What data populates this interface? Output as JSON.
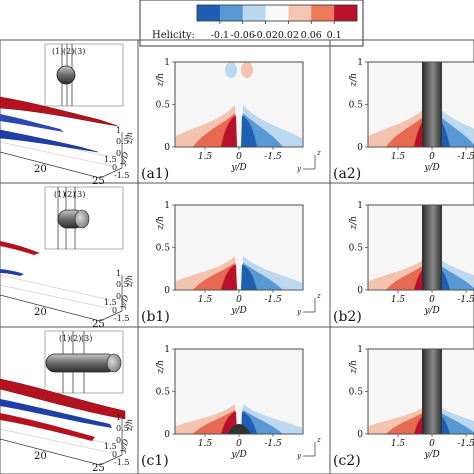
{
  "colorbar": {
    "title": "Helicity:",
    "ticks": [
      "-0.1",
      "-0.06",
      "-0.02",
      "0.02",
      "0.06",
      "0.1"
    ],
    "colors": [
      "#1f5fb3",
      "#5a98d4",
      "#b9d7ee",
      "#f8f8f8",
      "#f5c6b4",
      "#ec7b5c",
      "#b8122a"
    ]
  },
  "rows": [
    {
      "panel_1": "(a1)",
      "panel_2": "(a2)",
      "inset_labels": [
        "(1)",
        "(2)",
        "(3)"
      ],
      "iso_ticks_x": [
        "20",
        "25"
      ],
      "iso_ticks_y": [
        "1.5",
        "0",
        "-1.5"
      ],
      "iso_ticks_z": [
        "1",
        "0.5",
        "0"
      ],
      "iso_xlabel": "y/D",
      "iso_zlabel": "z/h"
    },
    {
      "panel_1": "(b1)",
      "panel_2": "(b2)",
      "inset_labels": [
        "(1)",
        "(2)",
        "(3)"
      ],
      "iso_ticks_x": [
        "20",
        "25"
      ],
      "iso_ticks_y": [
        "1.5",
        "0",
        "-1.5"
      ],
      "iso_ticks_z": [
        "1",
        "0.5",
        "0"
      ],
      "iso_xlabel": "y/D",
      "iso_zlabel": "z/h"
    },
    {
      "panel_1": "(c1)",
      "panel_2": "(c2)",
      "inset_labels": [
        "(1)",
        "(2)",
        "(3)"
      ],
      "iso_ticks_x": [
        "20",
        "25"
      ],
      "iso_ticks_y": [
        "1.5",
        "0",
        "-1.5"
      ],
      "iso_ticks_z": [
        "1",
        "0.5",
        "0"
      ],
      "iso_xlabel": "y/D",
      "iso_zlabel": "z/h"
    }
  ],
  "contour": {
    "y_ticks": [
      "1",
      "0.5",
      "0"
    ],
    "x_ticks": [
      "1.5",
      "0",
      "-1.5"
    ],
    "ylabel": "z/h",
    "xlabel": "y/D",
    "axis_z": "z",
    "axis_y": "y"
  }
}
